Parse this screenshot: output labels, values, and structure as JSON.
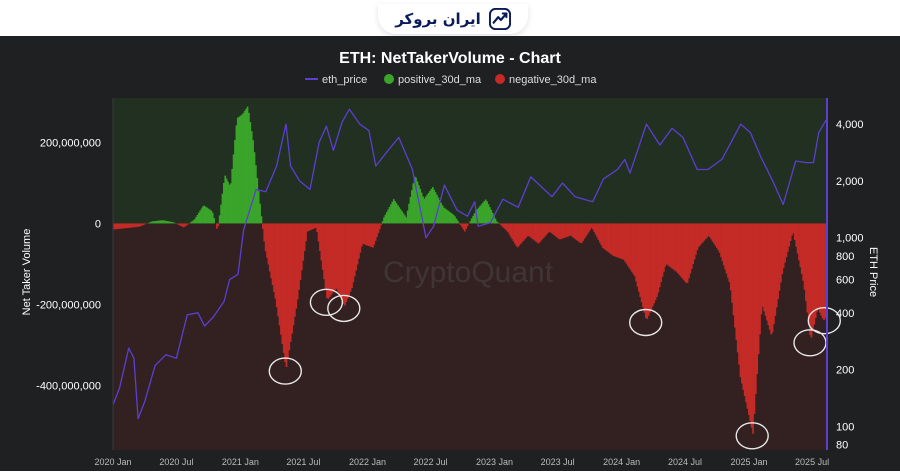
{
  "brand": {
    "name": "ایران بروکر",
    "icon": "chart-trend-icon"
  },
  "watermark": "CryptoQuant",
  "legend": {
    "items": [
      {
        "label": "eth_price",
        "color": "#5b3fd0",
        "style": "line"
      },
      {
        "label": "positive_30d_ma",
        "color": "#3aa52a",
        "style": "dot"
      },
      {
        "label": "negative_30d_ma",
        "color": "#c42a26",
        "style": "dot"
      }
    ]
  },
  "chart_data": {
    "type": "bar",
    "title": "ETH: NetTakerVolume - Chart",
    "ylabel": "Net Taker Volume",
    "y2label": "ETH Price",
    "ylim": [
      -560000000,
      310000000
    ],
    "yticks": [
      200000000,
      0,
      -200000000,
      -400000000
    ],
    "ytick_labels": [
      "200,000,000",
      "0",
      "-200,000,000",
      "-400,000,000"
    ],
    "y2_scale": "log",
    "y2lim": [
      75,
      5500
    ],
    "y2ticks": [
      4000,
      2000,
      1000,
      800,
      600,
      400,
      200,
      100,
      80
    ],
    "y2tick_labels": [
      "4,000",
      "2,000",
      "1,000",
      "800",
      "600",
      "400",
      "200",
      "100",
      "80"
    ],
    "xticks": [
      "2020-01-01",
      "2020-07-01",
      "2021-01-01",
      "2021-07-01",
      "2022-01-01",
      "2022-07-01",
      "2023-01-01",
      "2023-07-01",
      "2024-01-01",
      "2024-07-01",
      "2025-01-01",
      "2025-07-01"
    ],
    "xtick_labels": [
      "2020 Jan",
      "2020 Jul",
      "2021 Jan",
      "2021 Jul",
      "2022 Jan",
      "2022 Jul",
      "2023 Jan",
      "2023 Jul",
      "2024 Jan",
      "2024 Jul",
      "2025 Jan",
      "2025 Jul"
    ],
    "xrange": [
      "2020-01-01",
      "2025-08-10"
    ],
    "grid": false,
    "legend_position": "top-center",
    "colors": {
      "positive": "#3aa52a",
      "negative": "#c42a26",
      "price": "#5b3fd0",
      "background": "#1f2022"
    },
    "net_taker_volume_30d_ma": [
      [
        "2020-01-01",
        -15000000
      ],
      [
        "2020-03-15",
        -8000000
      ],
      [
        "2020-04-20",
        5000000
      ],
      [
        "2020-05-20",
        8000000
      ],
      [
        "2020-06-20",
        3000000
      ],
      [
        "2020-07-20",
        -10000000
      ],
      [
        "2020-08-20",
        10000000
      ],
      [
        "2020-09-15",
        45000000
      ],
      [
        "2020-10-10",
        30000000
      ],
      [
        "2020-10-25",
        -20000000
      ],
      [
        "2020-11-15",
        120000000
      ],
      [
        "2020-12-01",
        90000000
      ],
      [
        "2020-12-20",
        260000000
      ],
      [
        "2021-01-05",
        270000000
      ],
      [
        "2021-01-20",
        290000000
      ],
      [
        "2021-02-05",
        200000000
      ],
      [
        "2021-02-20",
        80000000
      ],
      [
        "2021-03-10",
        -60000000
      ],
      [
        "2021-04-10",
        -190000000
      ],
      [
        "2021-05-10",
        -360000000
      ],
      [
        "2021-06-10",
        -200000000
      ],
      [
        "2021-07-10",
        -20000000
      ],
      [
        "2021-08-05",
        -10000000
      ],
      [
        "2021-09-05",
        -190000000
      ],
      [
        "2021-10-01",
        -160000000
      ],
      [
        "2021-10-25",
        -205000000
      ],
      [
        "2021-11-15",
        -160000000
      ],
      [
        "2021-12-15",
        -50000000
      ],
      [
        "2022-01-15",
        -60000000
      ],
      [
        "2022-02-15",
        15000000
      ],
      [
        "2022-03-15",
        60000000
      ],
      [
        "2022-04-20",
        15000000
      ],
      [
        "2022-05-15",
        120000000
      ],
      [
        "2022-06-10",
        60000000
      ],
      [
        "2022-07-05",
        90000000
      ],
      [
        "2022-08-05",
        40000000
      ],
      [
        "2022-09-05",
        20000000
      ],
      [
        "2022-10-05",
        -20000000
      ],
      [
        "2022-11-05",
        30000000
      ],
      [
        "2022-12-05",
        60000000
      ],
      [
        "2023-01-05",
        5000000
      ],
      [
        "2023-02-05",
        -20000000
      ],
      [
        "2023-03-05",
        -60000000
      ],
      [
        "2023-04-05",
        -30000000
      ],
      [
        "2023-05-05",
        -50000000
      ],
      [
        "2023-06-05",
        -20000000
      ],
      [
        "2023-07-05",
        -40000000
      ],
      [
        "2023-08-05",
        -30000000
      ],
      [
        "2023-09-05",
        -50000000
      ],
      [
        "2023-10-05",
        -10000000
      ],
      [
        "2023-11-05",
        -60000000
      ],
      [
        "2023-12-05",
        -80000000
      ],
      [
        "2024-01-05",
        -90000000
      ],
      [
        "2024-02-05",
        -130000000
      ],
      [
        "2024-03-10",
        -240000000
      ],
      [
        "2024-04-10",
        -180000000
      ],
      [
        "2024-05-05",
        -100000000
      ],
      [
        "2024-06-05",
        -120000000
      ],
      [
        "2024-07-05",
        -150000000
      ],
      [
        "2024-08-05",
        -60000000
      ],
      [
        "2024-09-05",
        -30000000
      ],
      [
        "2024-10-05",
        -70000000
      ],
      [
        "2024-11-05",
        -150000000
      ],
      [
        "2024-12-05",
        -380000000
      ],
      [
        "2025-01-10",
        -520000000
      ],
      [
        "2025-02-05",
        -200000000
      ],
      [
        "2025-03-05",
        -280000000
      ],
      [
        "2025-04-05",
        -120000000
      ],
      [
        "2025-05-05",
        -20000000
      ],
      [
        "2025-06-05",
        -150000000
      ],
      [
        "2025-06-25",
        -290000000
      ],
      [
        "2025-07-15",
        -210000000
      ],
      [
        "2025-08-01",
        -240000000
      ],
      [
        "2025-08-10",
        -230000000
      ]
    ],
    "eth_price": [
      [
        "2020-01-01",
        130
      ],
      [
        "2020-01-20",
        160
      ],
      [
        "2020-02-15",
        260
      ],
      [
        "2020-03-01",
        230
      ],
      [
        "2020-03-13",
        110
      ],
      [
        "2020-04-01",
        135
      ],
      [
        "2020-05-01",
        210
      ],
      [
        "2020-06-01",
        240
      ],
      [
        "2020-07-01",
        230
      ],
      [
        "2020-08-01",
        390
      ],
      [
        "2020-09-01",
        400
      ],
      [
        "2020-09-20",
        340
      ],
      [
        "2020-10-15",
        380
      ],
      [
        "2020-11-15",
        460
      ],
      [
        "2020-12-01",
        600
      ],
      [
        "2020-12-25",
        640
      ],
      [
        "2021-01-10",
        1100
      ],
      [
        "2021-02-15",
        1800
      ],
      [
        "2021-03-15",
        1750
      ],
      [
        "2021-04-15",
        2400
      ],
      [
        "2021-05-12",
        4000
      ],
      [
        "2021-05-25",
        2400
      ],
      [
        "2021-06-20",
        2000
      ],
      [
        "2021-07-20",
        1800
      ],
      [
        "2021-08-15",
        3200
      ],
      [
        "2021-09-05",
        3900
      ],
      [
        "2021-09-25",
        2900
      ],
      [
        "2021-10-20",
        4100
      ],
      [
        "2021-11-10",
        4800
      ],
      [
        "2021-12-10",
        4000
      ],
      [
        "2022-01-05",
        3700
      ],
      [
        "2022-01-25",
        2400
      ],
      [
        "2022-03-01",
        2900
      ],
      [
        "2022-04-01",
        3400
      ],
      [
        "2022-05-10",
        2300
      ],
      [
        "2022-06-18",
        1000
      ],
      [
        "2022-07-10",
        1150
      ],
      [
        "2022-08-10",
        1900
      ],
      [
        "2022-09-15",
        1400
      ],
      [
        "2022-10-15",
        1300
      ],
      [
        "2022-11-05",
        1550
      ],
      [
        "2022-11-15",
        1150
      ],
      [
        "2022-12-20",
        1200
      ],
      [
        "2023-01-25",
        1600
      ],
      [
        "2023-03-10",
        1450
      ],
      [
        "2023-04-15",
        2100
      ],
      [
        "2023-06-15",
        1650
      ],
      [
        "2023-07-15",
        1950
      ],
      [
        "2023-08-20",
        1650
      ],
      [
        "2023-10-10",
        1550
      ],
      [
        "2023-11-10",
        2050
      ],
      [
        "2023-12-20",
        2300
      ],
      [
        "2024-01-10",
        2600
      ],
      [
        "2024-01-25",
        2200
      ],
      [
        "2024-03-12",
        4000
      ],
      [
        "2024-04-20",
        3100
      ],
      [
        "2024-05-25",
        3800
      ],
      [
        "2024-06-25",
        3400
      ],
      [
        "2024-08-05",
        2300
      ],
      [
        "2024-09-05",
        2300
      ],
      [
        "2024-10-15",
        2600
      ],
      [
        "2024-11-10",
        3200
      ],
      [
        "2024-12-08",
        4000
      ],
      [
        "2025-01-05",
        3600
      ],
      [
        "2025-02-03",
        2700
      ],
      [
        "2025-03-10",
        2000
      ],
      [
        "2025-04-09",
        1500
      ],
      [
        "2025-05-15",
        2550
      ],
      [
        "2025-06-15",
        2500
      ],
      [
        "2025-07-05",
        2500
      ],
      [
        "2025-07-20",
        3600
      ],
      [
        "2025-08-10",
        4200
      ]
    ],
    "highlighted_troughs": [
      "2021-05-10",
      "2021-09-05",
      "2021-10-25",
      "2024-03-10",
      "2025-01-10",
      "2025-06-25",
      "2025-08-05"
    ]
  }
}
